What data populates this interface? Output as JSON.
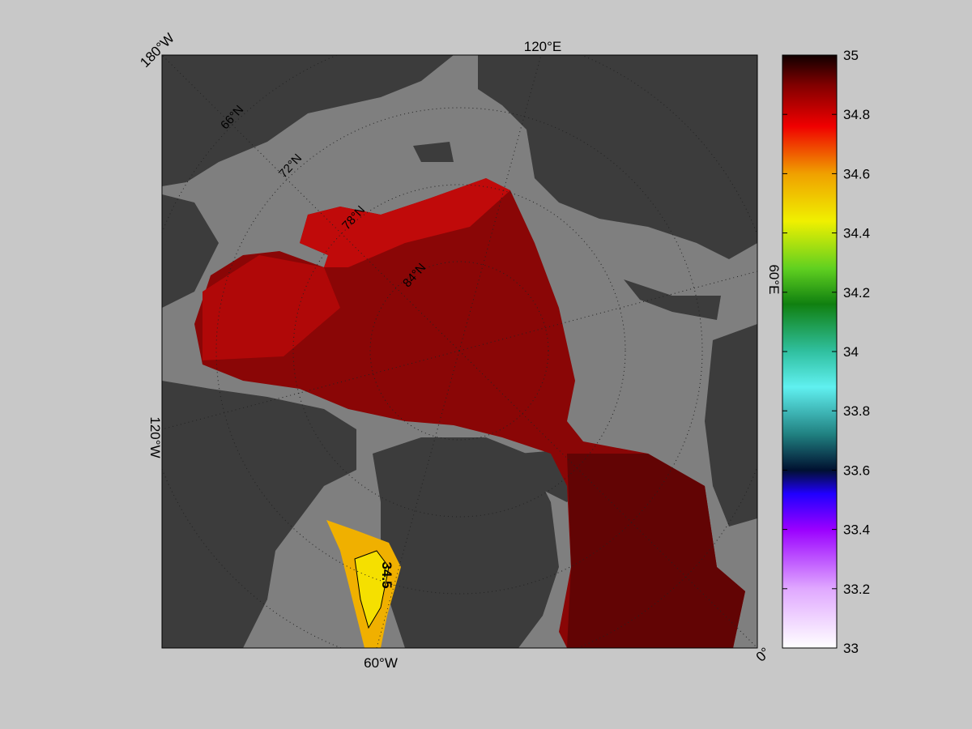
{
  "map": {
    "longitude_labels": [
      "180°W",
      "120°E",
      "60°E",
      "0°",
      "60°W",
      "120°W"
    ],
    "latitude_labels": [
      "66°N",
      "72°N",
      "78°N",
      "84°N"
    ],
    "contour_label": "34.5"
  },
  "colorbar": {
    "lim": [
      33,
      35
    ],
    "ticks": [
      33,
      33.2,
      33.4,
      33.6,
      33.8,
      34,
      34.2,
      34.4,
      34.6,
      34.8,
      35
    ]
  }
}
